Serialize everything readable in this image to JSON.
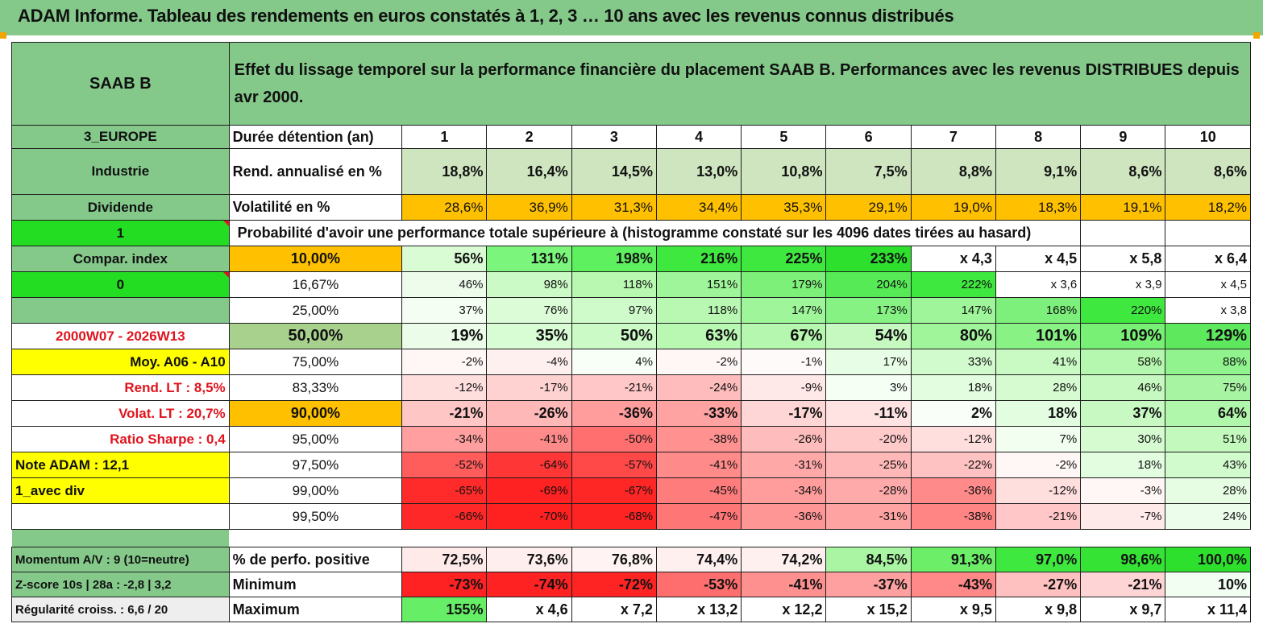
{
  "title": "ADAM Informe. Tableau des rendements en euros constatés à 1, 2, 3 … 10 ans avec les revenus connus distribués",
  "stock": "SAAB B",
  "subtitle": "Effet du lissage temporel sur la performance financière du placement SAAB B. Performances avec les revenus DISTRIBUES depuis avr 2000.",
  "left": {
    "region": "3_EUROPE",
    "sector": "Industrie",
    "type": "Dividende",
    "flag1": "1",
    "compar": "Compar. index",
    "flag0": "0",
    "period": "2000W07 - 2026W13",
    "moy": "Moy. A06 - A10",
    "rend_lt": "Rend. LT :   8,5%",
    "volat_lt": "Volat. LT :   20,7%",
    "sharpe": "Ratio Sharpe :     0,4",
    "note": "Note ADAM : 12,1",
    "mode": "1_avec div",
    "momentum": "Momentum A/V : 9 (10=neutre)",
    "zscore": "Z-score 10s | 28a : -2,8 | 3,2",
    "regularite": "Régularité croiss. : 6,6 / 20"
  },
  "labels": {
    "duree": "Durée détention (an)",
    "rend": "Rend. annualisé en %",
    "vol": "Volatilité en %",
    "proba": "Probabilité d'avoir une performance totale supérieure à (histogramme constaté sur les 4096 dates tirées au hasard)",
    "perf_pos": "% de perfo. positive",
    "minimum": "Minimum",
    "maximum": "Maximum"
  },
  "years": [
    "1",
    "2",
    "3",
    "4",
    "5",
    "6",
    "7",
    "8",
    "9",
    "10"
  ],
  "rend": [
    "18,8%",
    "16,4%",
    "14,5%",
    "13,0%",
    "10,8%",
    "7,5%",
    "8,8%",
    "9,1%",
    "8,6%",
    "8,6%"
  ],
  "vol": [
    "28,6%",
    "36,9%",
    "31,3%",
    "34,4%",
    "35,3%",
    "29,1%",
    "19,0%",
    "18,3%",
    "19,1%",
    "18,2%"
  ],
  "quantiles": [
    {
      "p": "10,00%",
      "v": [
        "56%",
        "131%",
        "198%",
        "216%",
        "225%",
        "233%",
        "x 4,3",
        "x 4,5",
        "x 5,8",
        "x 6,4"
      ]
    },
    {
      "p": "16,67%",
      "v": [
        "46%",
        "98%",
        "118%",
        "151%",
        "179%",
        "204%",
        "222%",
        "x 3,6",
        "x 3,9",
        "x 4,5"
      ]
    },
    {
      "p": "25,00%",
      "v": [
        "37%",
        "76%",
        "97%",
        "118%",
        "147%",
        "173%",
        "147%",
        "168%",
        "220%",
        "x 3,8"
      ]
    },
    {
      "p": "50,00%",
      "v": [
        "19%",
        "35%",
        "50%",
        "63%",
        "67%",
        "54%",
        "80%",
        "101%",
        "109%",
        "129%"
      ]
    },
    {
      "p": "75,00%",
      "v": [
        "-2%",
        "-4%",
        "4%",
        "-2%",
        "-1%",
        "17%",
        "33%",
        "41%",
        "58%",
        "88%"
      ]
    },
    {
      "p": "83,33%",
      "v": [
        "-12%",
        "-17%",
        "-21%",
        "-24%",
        "-9%",
        "3%",
        "18%",
        "28%",
        "46%",
        "75%"
      ]
    },
    {
      "p": "90,00%",
      "v": [
        "-21%",
        "-26%",
        "-36%",
        "-33%",
        "-17%",
        "-11%",
        "2%",
        "18%",
        "37%",
        "64%"
      ]
    },
    {
      "p": "95,00%",
      "v": [
        "-34%",
        "-41%",
        "-50%",
        "-38%",
        "-26%",
        "-20%",
        "-12%",
        "7%",
        "30%",
        "51%"
      ]
    },
    {
      "p": "97,50%",
      "v": [
        "-52%",
        "-64%",
        "-57%",
        "-41%",
        "-31%",
        "-25%",
        "-22%",
        "-2%",
        "18%",
        "43%"
      ]
    },
    {
      "p": "99,00%",
      "v": [
        "-65%",
        "-69%",
        "-67%",
        "-45%",
        "-34%",
        "-28%",
        "-36%",
        "-12%",
        "-3%",
        "28%"
      ]
    },
    {
      "p": "99,50%",
      "v": [
        "-66%",
        "-70%",
        "-68%",
        "-47%",
        "-36%",
        "-31%",
        "-38%",
        "-21%",
        "-7%",
        "24%"
      ]
    }
  ],
  "perf_pos": [
    "72,5%",
    "73,6%",
    "76,8%",
    "74,4%",
    "74,2%",
    "84,5%",
    "91,3%",
    "97,0%",
    "98,6%",
    "100,0%"
  ],
  "minimum": [
    "-73%",
    "-74%",
    "-72%",
    "-53%",
    "-41%",
    "-37%",
    "-43%",
    "-27%",
    "-21%",
    "10%"
  ],
  "maximum": [
    "155%",
    "x 4,6",
    "x 7,2",
    "x 13,2",
    "x 12,2",
    "x 15,2",
    "x 9,5",
    "x 9,8",
    "x 9,7",
    "x 11,4"
  ],
  "colors": {
    "header_green": "#84c98a",
    "bright_green": "#22dd22",
    "yellow": "#ffff00",
    "orange": "#ffc000",
    "red_text": "#e0141e"
  }
}
